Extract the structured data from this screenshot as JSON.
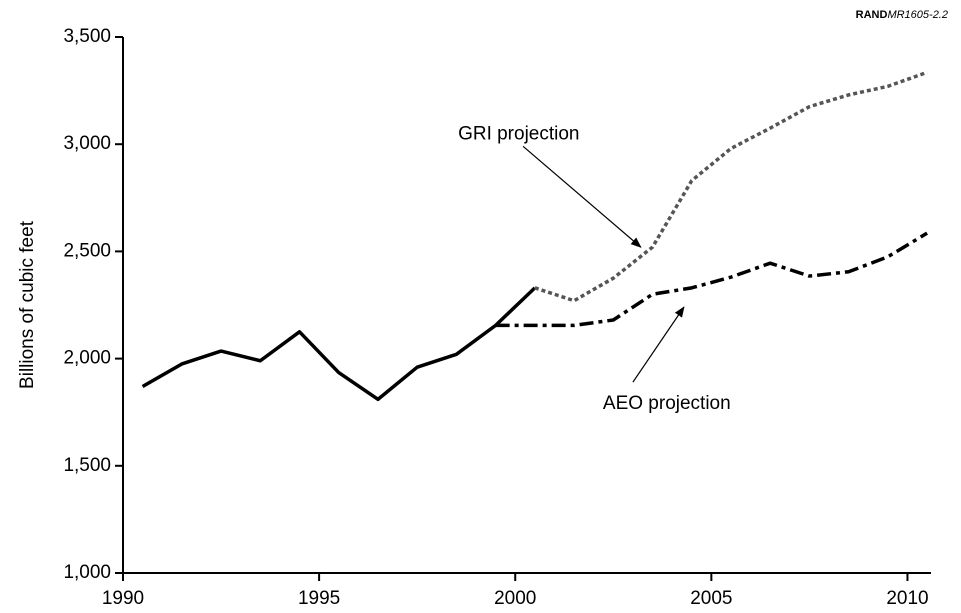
{
  "chart_data": {
    "type": "line",
    "credit": {
      "org": "RAND",
      "id": "MR1605-2.2"
    },
    "y_label": "Billions of cubic feet",
    "x": [
      1990.5,
      1991.5,
      1992.5,
      1993.5,
      1994.5,
      1995.5,
      1996.5,
      1997.5,
      1998.5,
      1999.5,
      2000.5,
      2001.5,
      2002.5,
      2003.5,
      2004.5,
      2005.5,
      2006.5,
      2007.5,
      2008.5,
      2009.5,
      2010.5
    ],
    "series": [
      {
        "color": "#000000",
        "style": "solid",
        "values": [
          1870,
          1975,
          2035,
          1990,
          2125,
          1935,
          1810,
          1960,
          2020,
          2155,
          2330,
          null,
          null,
          null,
          null,
          null,
          null,
          null,
          null,
          null,
          null
        ]
      },
      {
        "color": "#555555",
        "style": "dotted",
        "values": [
          null,
          null,
          null,
          null,
          null,
          null,
          null,
          null,
          null,
          null,
          2330,
          2270,
          2375,
          2520,
          2830,
          2980,
          3075,
          3175,
          3230,
          3270,
          3335
        ]
      },
      {
        "color": "#000000",
        "style": "dashdot",
        "values": [
          null,
          null,
          null,
          null,
          null,
          null,
          null,
          null,
          null,
          2155,
          2155,
          2155,
          2180,
          2300,
          2330,
          2380,
          2445,
          2385,
          2405,
          2475,
          2585
        ]
      }
    ],
    "annotations": [
      {
        "text": "GRI projection",
        "from": [
          2000.2,
          2990
        ],
        "to": [
          2003.2,
          2520
        ]
      },
      {
        "text": "AEO projection",
        "from": [
          2003.0,
          1890
        ],
        "to": [
          2004.3,
          2240
        ]
      }
    ],
    "xlim": [
      1990,
      2010.6
    ],
    "xticks": [
      1990,
      1995,
      2000,
      2005,
      2010
    ],
    "ylim": [
      1000,
      3500
    ],
    "yticks": [
      {
        "value": 1000,
        "label": "1,000"
      },
      {
        "value": 1500,
        "label": "1,500"
      },
      {
        "value": 2000,
        "label": "2,000"
      },
      {
        "value": 2500,
        "label": "2,500"
      },
      {
        "value": 3000,
        "label": "3,000"
      },
      {
        "value": 3500,
        "label": "3,500"
      }
    ],
    "grid": false
  }
}
